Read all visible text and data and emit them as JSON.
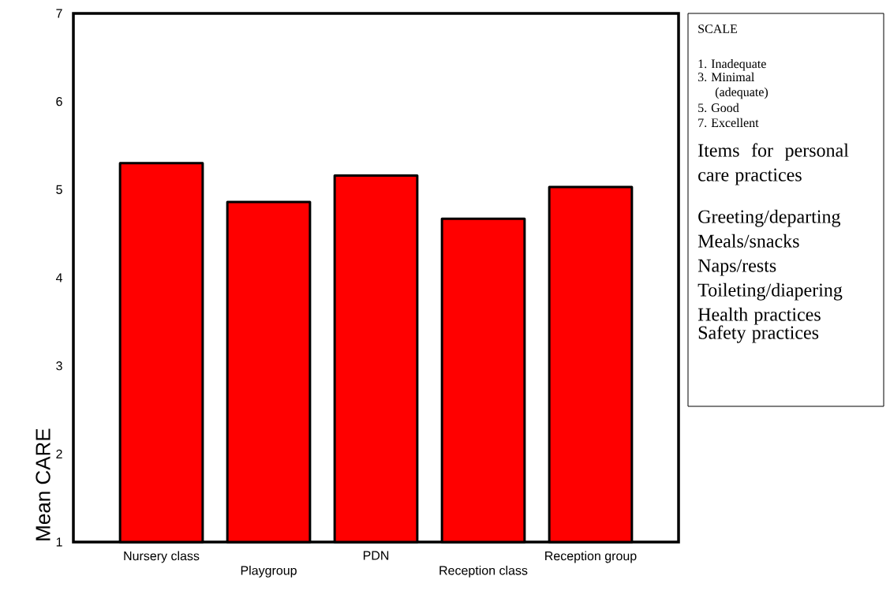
{
  "chart_data": {
    "type": "bar",
    "ylabel": "Mean CARE",
    "categories": [
      "Nursery class",
      "Playgroup",
      "PDN",
      "Reception class",
      "Reception group"
    ],
    "values": [
      5.3,
      4.86,
      5.16,
      4.67,
      5.03
    ],
    "color": "#ff0000",
    "ylim": [
      1,
      7
    ],
    "yticks": [
      1,
      2,
      3,
      4,
      5,
      6,
      7
    ],
    "annotations": [
      "SCALE",
      "1. Inadequate",
      "3. Minimal (adequate)",
      "5. Good",
      "7. Excellent",
      "Items for personal care practices",
      "Greeting/departing",
      "Meals/snacks",
      "Naps/rests",
      "Toileting/diapering",
      "Health practices",
      "Safety practices"
    ]
  }
}
